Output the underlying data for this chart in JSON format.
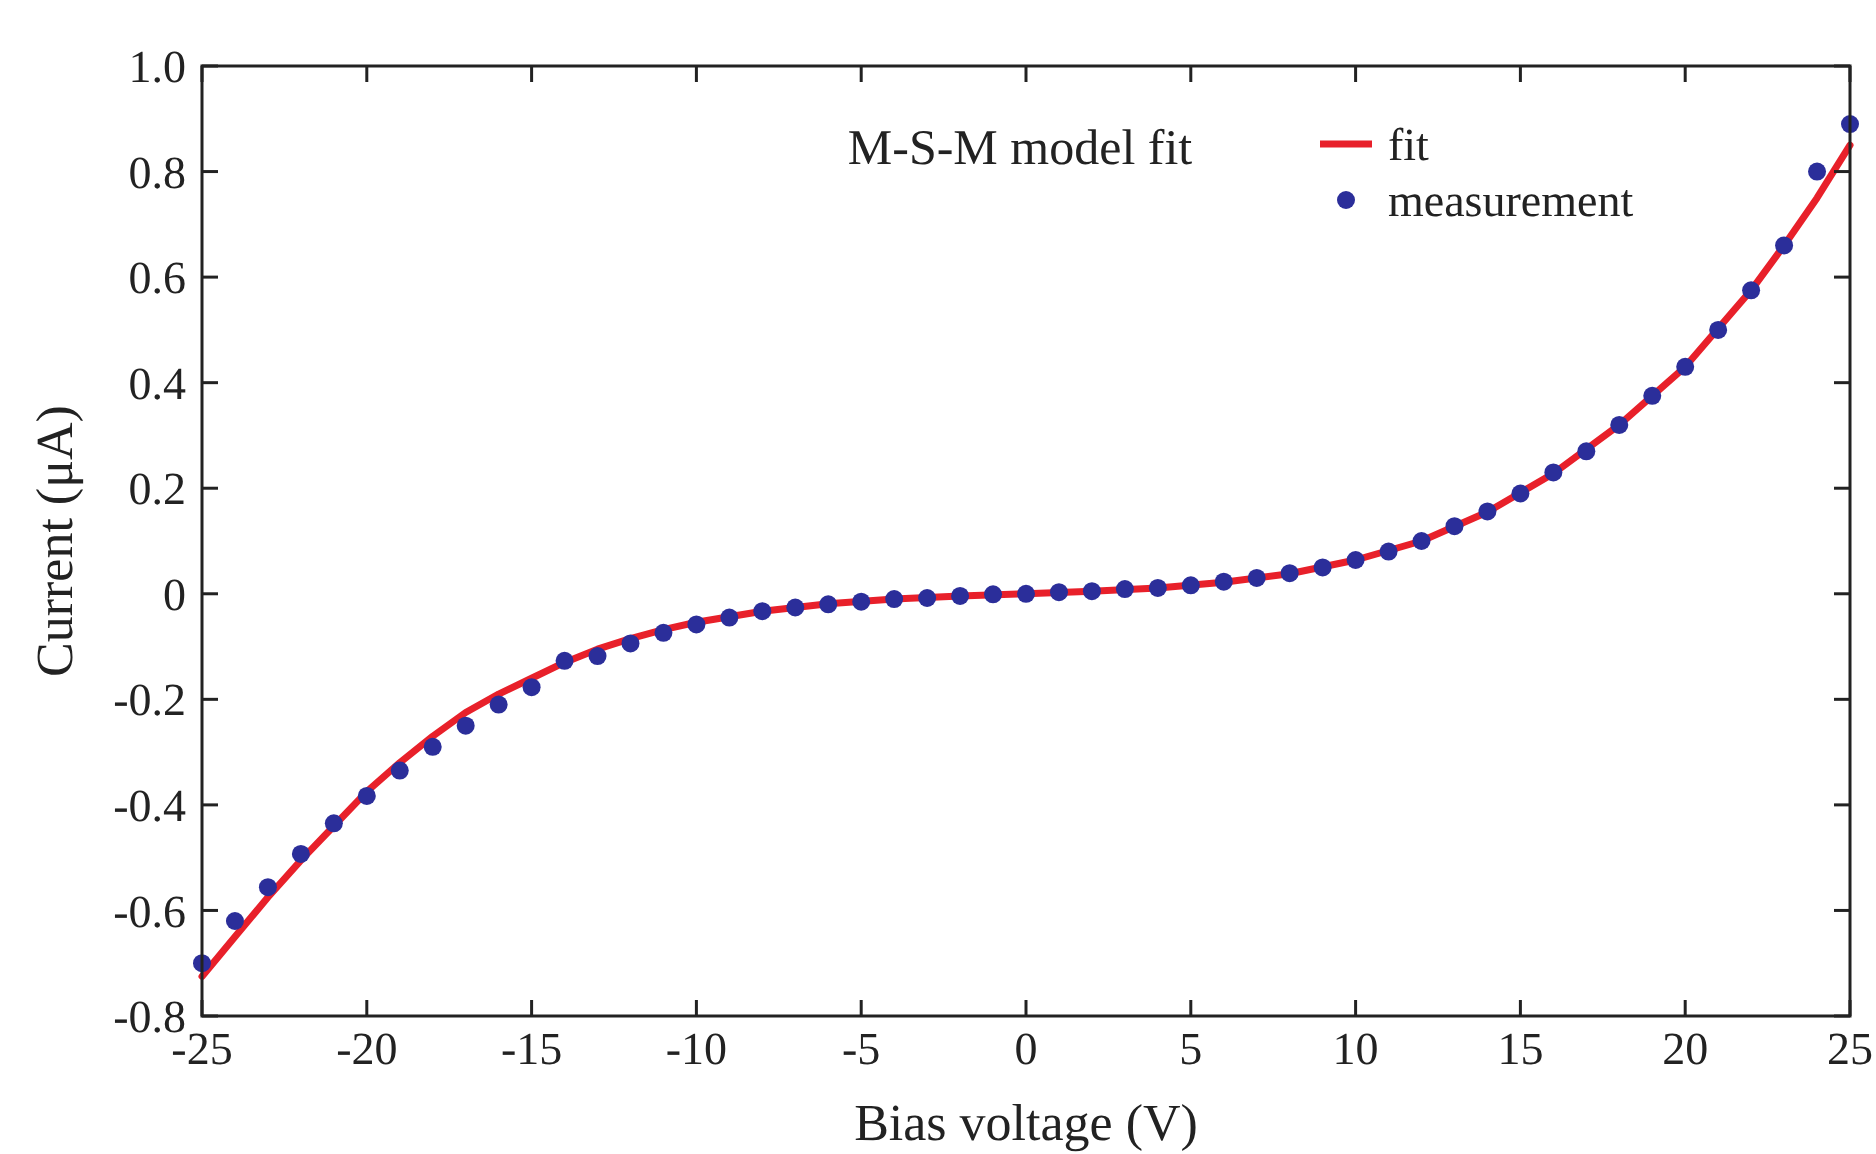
{
  "chart_data": {
    "type": "line",
    "title": "M-S-M model fit",
    "xlabel": "Bias voltage (V)",
    "ylabel": "Current (μA)",
    "xlim": [
      -25,
      25
    ],
    "xticks": [
      -25,
      -20,
      -15,
      -10,
      -5,
      0,
      5,
      10,
      15,
      20,
      25
    ],
    "ylim": [
      -0.8,
      1
    ],
    "yticks": [
      {
        "value": -0.8,
        "label": "-0.8"
      },
      -0.6,
      -0.4,
      -0.2,
      0,
      0.2,
      0.4,
      0.6,
      0.8,
      {
        "value": 1,
        "label": "1.0"
      }
    ],
    "grid": false,
    "legend": "top right",
    "series": [
      {
        "name": "fit",
        "color": "#e8202a",
        "line_style": "solid",
        "marker": "none",
        "x": [
          -25,
          -24,
          -23,
          -22,
          -21,
          -20,
          -19,
          -18,
          -17,
          -16,
          -15,
          -14,
          -13,
          -12,
          -11,
          -10,
          -8,
          -6,
          -4,
          -2,
          0,
          2,
          4,
          6,
          8,
          10,
          12,
          14,
          16,
          18,
          20,
          22,
          23,
          24,
          25
        ],
        "values": [
          -0.725,
          -0.65,
          -0.575,
          -0.505,
          -0.44,
          -0.375,
          -0.32,
          -0.27,
          -0.225,
          -0.19,
          -0.16,
          -0.13,
          -0.105,
          -0.085,
          -0.068,
          -0.054,
          -0.033,
          -0.019,
          -0.01,
          -0.004,
          0,
          0.005,
          0.011,
          0.022,
          0.038,
          0.064,
          0.1,
          0.155,
          0.228,
          0.32,
          0.43,
          0.575,
          0.66,
          0.75,
          0.85
        ]
      },
      {
        "name": "measurement",
        "type": "scatter",
        "color": "#2b2e9a",
        "marker": "circle",
        "x": [
          -25,
          -24,
          -23,
          -22,
          -21,
          -20,
          -19,
          -18,
          -17,
          -16,
          -15,
          -14,
          -13,
          -12,
          -11,
          -10,
          -9,
          -8,
          -7,
          -6,
          -5,
          -4,
          -3,
          -2,
          -1,
          0,
          1,
          2,
          3,
          4,
          5,
          6,
          7,
          8,
          9,
          10,
          11,
          12,
          13,
          14,
          15,
          16,
          17,
          18,
          19,
          20,
          21,
          22,
          23,
          24,
          25
        ],
        "values": [
          -0.7,
          -0.62,
          -0.556,
          -0.493,
          -0.435,
          -0.383,
          -0.335,
          -0.29,
          -0.25,
          -0.21,
          -0.177,
          -0.127,
          -0.118,
          -0.094,
          -0.074,
          -0.058,
          -0.045,
          -0.033,
          -0.026,
          -0.02,
          -0.015,
          -0.01,
          -0.008,
          -0.004,
          -0.001,
          0,
          0.003,
          0.005,
          0.009,
          0.011,
          0.016,
          0.023,
          0.03,
          0.039,
          0.05,
          0.064,
          0.08,
          0.1,
          0.128,
          0.156,
          0.19,
          0.23,
          0.27,
          0.32,
          0.375,
          0.43,
          0.5,
          0.575,
          0.66,
          0.8,
          0.89
        ]
      }
    ]
  }
}
